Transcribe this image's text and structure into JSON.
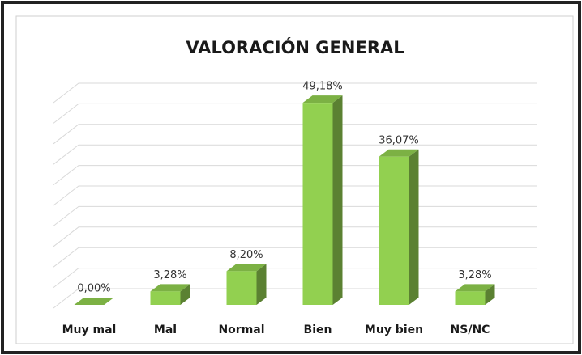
{
  "chart_data": {
    "type": "bar3d",
    "title": "VALORACIÓN GENERAL",
    "categories": [
      "Muy mal",
      "Mal",
      "Normal",
      "Bien",
      "Muy bien",
      "NS/NC"
    ],
    "values": [
      0,
      3.28,
      8.2,
      49.18,
      36.07,
      3.28
    ],
    "value_labels": [
      "0,00%",
      "3,28%",
      "8,20%",
      "49,18%",
      "36,07%",
      "3,28%"
    ],
    "color": "#92d050",
    "ylim": [
      0,
      50
    ],
    "yticks": [
      0,
      5,
      10,
      15,
      20,
      25,
      30,
      35,
      40,
      45,
      50
    ],
    "grid": true
  }
}
